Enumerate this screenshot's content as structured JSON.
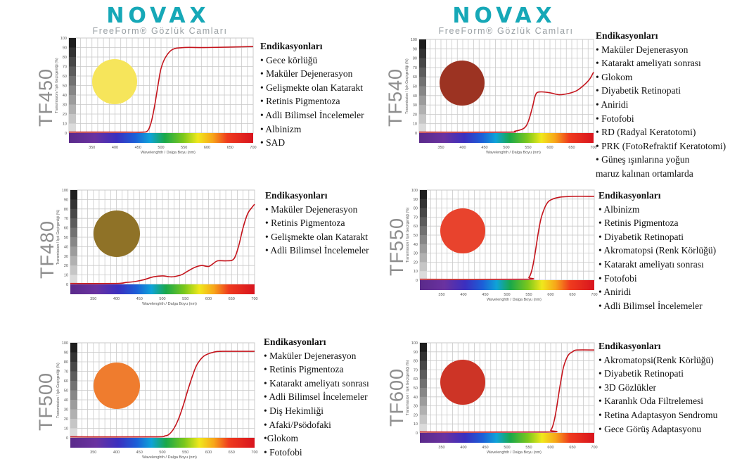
{
  "header": {
    "brand": "NOVAX",
    "tagline": "FreeForm® Gözlük Camları",
    "brand_color": "#16a8b7"
  },
  "chart_data": [
    {
      "type": "line",
      "id": "TF450",
      "label": "TF450",
      "lens_color": "#f6e55b",
      "title_label": "Endikasyonları",
      "indications": [
        "• Gece körlüğü",
        "• Maküler Dejenerasyon",
        "• Gelişmekte olan Katarakt",
        "• Retinis Pigmentoza",
        "• Adli Bilimsel İncelemeler",
        "• Albinizm",
        "• SAD"
      ],
      "xlabel": "Wavelenghth / Dalga Boyu (nm)",
      "ylabel": "Transmission / Işık Geçirgenliği (%)",
      "xlim": [
        300,
        700
      ],
      "ylim": [
        0,
        100
      ],
      "xticks": [
        350,
        400,
        450,
        500,
        550,
        600,
        650,
        700
      ],
      "yticks": [
        0,
        10,
        20,
        30,
        40,
        50,
        60,
        70,
        80,
        90,
        100
      ],
      "x": [
        300,
        420,
        460,
        470,
        475,
        480,
        485,
        490,
        495,
        500,
        510,
        525,
        550,
        600,
        700
      ],
      "y": [
        1,
        1,
        1,
        2,
        6,
        14,
        26,
        40,
        55,
        68,
        80,
        88,
        90,
        90,
        91
      ]
    },
    {
      "type": "line",
      "id": "TF480",
      "label": "TF480",
      "lens_color": "#8f7227",
      "title_label": "Endikasyonları",
      "indications": [
        "• Maküler Dejenerasyon",
        "• Retinis Pigmentoza",
        "• Gelişmekte olan Katarakt",
        "• Adli Bilimsel İncelemeler"
      ],
      "xlabel": "Wavelenghth / Dalga Boyu (nm)",
      "ylabel": "Transmission / Işık Geçirgenliği (%)",
      "xlim": [
        300,
        700
      ],
      "ylim": [
        0,
        100
      ],
      "xticks": [
        350,
        400,
        450,
        500,
        550,
        600,
        650,
        700
      ],
      "yticks": [
        0,
        10,
        20,
        30,
        40,
        50,
        60,
        70,
        80,
        90,
        100
      ],
      "x": [
        300,
        400,
        420,
        440,
        460,
        480,
        500,
        520,
        540,
        555,
        570,
        585,
        600,
        610,
        620,
        640,
        655,
        665,
        675,
        685,
        695,
        700
      ],
      "y": [
        1,
        1,
        2,
        3,
        5,
        8,
        9,
        8,
        10,
        14,
        18,
        20,
        19,
        22,
        25,
        25,
        27,
        40,
        60,
        75,
        82,
        85
      ]
    },
    {
      "type": "line",
      "id": "TF500",
      "label": "TF500",
      "lens_color": "#ef7c2e",
      "title_label": "Endikasyonları",
      "indications": [
        "• Maküler Dejenerasyon",
        "• Retinis Pigmentoza",
        "• Katarakt ameliyatı sonrası",
        "• Adli Bilimsel İncelemeler",
        "• Diş Hekimliği",
        "• Afaki/Psödofaki",
        "•Glokom",
        "• Fotofobi"
      ],
      "xlabel": "Wavelenghth / Dalga Boyu (nm)",
      "ylabel": "Transmission / Işık Geçirgenliği (%)",
      "xlim": [
        300,
        700
      ],
      "ylim": [
        0,
        100
      ],
      "xticks": [
        350,
        400,
        450,
        500,
        550,
        600,
        650,
        700
      ],
      "yticks": [
        0,
        10,
        20,
        30,
        40,
        50,
        60,
        70,
        80,
        90,
        100
      ],
      "x": [
        300,
        480,
        505,
        515,
        525,
        535,
        545,
        555,
        565,
        575,
        590,
        610,
        630,
        700
      ],
      "y": [
        1,
        1,
        2,
        4,
        10,
        20,
        34,
        50,
        65,
        77,
        86,
        90,
        91,
        91
      ]
    },
    {
      "type": "line",
      "id": "TF540",
      "label": "TF540",
      "lens_color": "#9c3322",
      "title_label": "Endikasyonları",
      "indications": [
        "• Maküler Dejenerasyon",
        "• Katarakt ameliyatı sonrası",
        "• Glokom",
        "• Diyabetik Retinopati",
        "• Aniridi",
        "• Fotofobi",
        "• RD (Radyal Keratotomi)",
        "• PRK (FotoRefraktif Keratotomi)",
        "• Güneş ışınlarına yoğun",
        "maruz kalınan ortamlarda"
      ],
      "xlabel": "Wavelenghth / Dalga Boyu (nm)",
      "ylabel": "Transmission / Işık Geçirgenliği (%)",
      "xlim": [
        300,
        700
      ],
      "ylim": [
        0,
        100
      ],
      "xticks": [
        350,
        400,
        450,
        500,
        550,
        600,
        650,
        700
      ],
      "yticks": [
        0,
        10,
        20,
        30,
        40,
        50,
        60,
        70,
        80,
        90,
        100
      ],
      "x": [
        300,
        500,
        520,
        540,
        550,
        560,
        565,
        570,
        580,
        600,
        620,
        640,
        660,
        675,
        690,
        700
      ],
      "y": [
        1,
        1,
        2,
        5,
        12,
        28,
        38,
        43,
        44,
        43,
        41,
        42,
        45,
        50,
        57,
        65
      ]
    },
    {
      "type": "line",
      "id": "TF550",
      "label": "TF550",
      "lens_color": "#e8432d",
      "title_label": "Endikasyonları",
      "indications": [
        "• Albinizm",
        "• Retinis Pigmentoza",
        "• Diyabetik Retinopati",
        "• Akromatopsi (Renk Körlüğü)",
        "• Katarakt ameliyatı sonrası",
        "• Fotofobi",
        "• Aniridi",
        "• Adli Bilimsel İncelemeler"
      ],
      "xlabel": "Wavelenghth / Dalga Boyu (nm)",
      "ylabel": "Transmission / Işık Geçirgenliği (%)",
      "xlim": [
        300,
        700
      ],
      "ylim": [
        0,
        100
      ],
      "xticks": [
        350,
        400,
        450,
        500,
        550,
        600,
        650,
        700
      ],
      "yticks": [
        0,
        10,
        20,
        30,
        40,
        50,
        60,
        70,
        80,
        90,
        100
      ],
      "x": [
        300,
        540,
        550,
        555,
        560,
        565,
        570,
        575,
        580,
        590,
        600,
        620,
        650,
        700
      ],
      "y": [
        1,
        1,
        3,
        8,
        18,
        32,
        48,
        62,
        72,
        84,
        89,
        92,
        93,
        93
      ]
    },
    {
      "type": "line",
      "id": "TF600",
      "label": "TF600",
      "lens_color": "#cd3426",
      "title_label": "Endikasyonları",
      "indications": [
        "• Akromatopsi(Renk Körlüğü)",
        "• Diyabetik Retinopati",
        "• 3D Gözlükler",
        "• Karanlık Oda Filtrelemesi",
        "• Retina Adaptasyon Sendromu",
        "• Gece Görüş Adaptasyonu"
      ],
      "xlabel": "Wavelenghth / Dalga Boyu (nm)",
      "ylabel": "Transmission / Işık Geçirgenliği (%)",
      "xlim": [
        300,
        700
      ],
      "ylim": [
        0,
        100
      ],
      "xticks": [
        350,
        400,
        450,
        500,
        550,
        600,
        650,
        700
      ],
      "yticks": [
        0,
        10,
        20,
        30,
        40,
        50,
        60,
        70,
        80,
        90,
        100
      ],
      "x": [
        300,
        590,
        600,
        605,
        610,
        615,
        620,
        625,
        630,
        640,
        650,
        660,
        700
      ],
      "y": [
        1,
        1,
        3,
        8,
        18,
        32,
        48,
        62,
        74,
        86,
        90,
        92,
        92
      ]
    }
  ]
}
